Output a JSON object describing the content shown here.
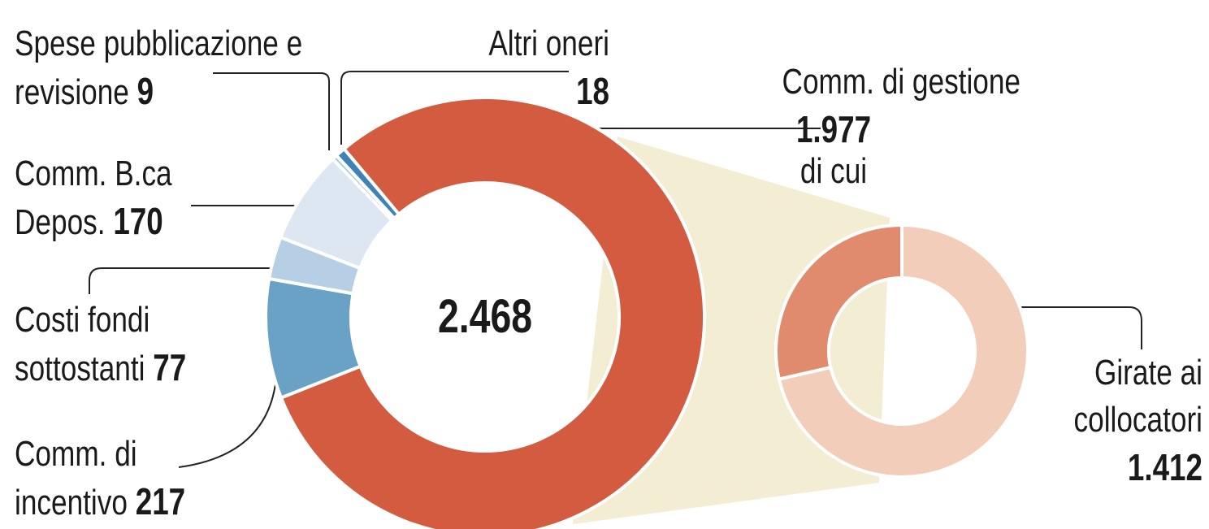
{
  "chart_data": {
    "type": "pie",
    "total": 2468,
    "total_label": "2.468",
    "categories": [
      "Comm. di gestione",
      "Comm. di incentivo",
      "Costi fondi sottostanti",
      "Comm. B.ca Depos.",
      "Spese pubblicazione e revisione",
      "Altri oneri"
    ],
    "values": [
      1977,
      217,
      77,
      170,
      9,
      18
    ],
    "value_labels": [
      "1.977",
      "217",
      "77",
      "170",
      "9",
      "18"
    ],
    "colors": [
      "#d35c40",
      "#6aa2c6",
      "#b6cfe4",
      "#dce7f2",
      "#a9c9e2",
      "#3f82b6"
    ],
    "annotation": "di cui",
    "breakdown": {
      "parent": 0,
      "categories": [
        "Girate ai collocatori",
        null
      ],
      "values": [
        1412,
        565
      ],
      "value_labels": [
        "1.412",
        null
      ],
      "colors": [
        "#f2cdb9",
        "#e08b6d"
      ]
    }
  }
}
